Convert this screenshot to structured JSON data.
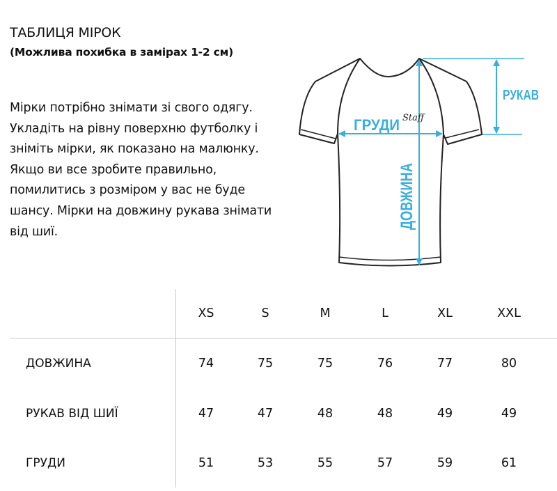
{
  "title": "ТАБЛИЦЯ МІРОК",
  "subtitle": "(Можлива похибка в замірах 1-2 см)",
  "description": "Мірки потрібно знімати зі свого одягу. Укладіть на рівну поверхню футболку і зніміть мірки, як показано на малюнку. Якщо ви все зробите правильно, помилитись з розміром у вас не буде шансу. Мірки на довжину рукава знімати від шиї.",
  "diagram": {
    "accent_color": "#3aaee0",
    "labels": {
      "chest": "ГРУДИ",
      "sleeve": "РУКАВ",
      "length": "ДОВЖИНА"
    },
    "logo_text": "Staff"
  },
  "table": {
    "sizes": [
      "XS",
      "S",
      "M",
      "L",
      "XL",
      "XXL"
    ],
    "rows": [
      {
        "label": "ДОВЖИНА",
        "values": [
          "74",
          "75",
          "75",
          "76",
          "77",
          "80"
        ]
      },
      {
        "label": "РУКАВ ВІД ШИЇ",
        "values": [
          "47",
          "47",
          "48",
          "48",
          "49",
          "49"
        ]
      },
      {
        "label": "ГРУДИ",
        "values": [
          "51",
          "53",
          "55",
          "57",
          "59",
          "61"
        ]
      }
    ]
  }
}
